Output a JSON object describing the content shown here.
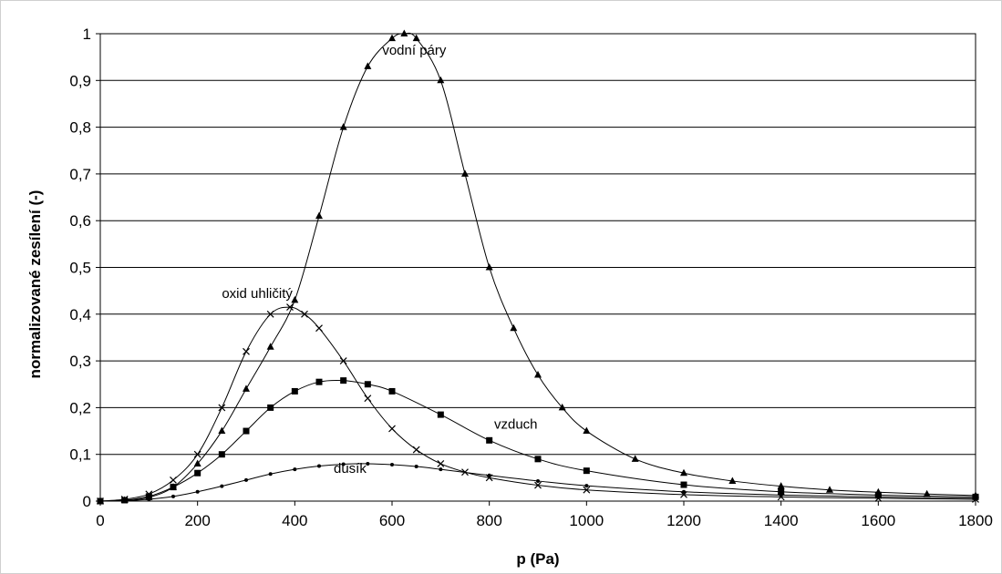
{
  "chart_data": {
    "type": "line",
    "title": "",
    "xlabel": "p (Pa)",
    "ylabel": "normalizované zesílení (-)",
    "xlim": [
      0,
      1800
    ],
    "ylim": [
      0,
      1
    ],
    "x_ticks": [
      "0",
      "200",
      "400",
      "600",
      "800",
      "1000",
      "1200",
      "1400",
      "1600",
      "1800"
    ],
    "y_ticks": [
      "0",
      "0,1",
      "0,2",
      "0,3",
      "0,4",
      "0,5",
      "0,6",
      "0,7",
      "0,8",
      "0,9",
      "1"
    ],
    "grid": "horizontal",
    "legend": "none",
    "series": [
      {
        "name": "vodní páry",
        "marker": "triangle",
        "color": "#000000",
        "x": [
          0,
          50,
          100,
          150,
          200,
          250,
          300,
          350,
          400,
          450,
          500,
          550,
          600,
          625,
          650,
          700,
          750,
          800,
          850,
          900,
          950,
          1000,
          1100,
          1200,
          1300,
          1400,
          1500,
          1600,
          1700,
          1800
        ],
        "y": [
          0,
          0.002,
          0.008,
          0.03,
          0.08,
          0.15,
          0.24,
          0.33,
          0.43,
          0.61,
          0.8,
          0.93,
          0.99,
          1.0,
          0.99,
          0.9,
          0.7,
          0.5,
          0.37,
          0.27,
          0.2,
          0.15,
          0.09,
          0.06,
          0.043,
          0.032,
          0.024,
          0.019,
          0.015,
          0.012
        ]
      },
      {
        "name": "oxid uhličitý",
        "marker": "x",
        "color": "#000000",
        "x": [
          0,
          50,
          100,
          150,
          200,
          250,
          300,
          350,
          390,
          420,
          450,
          500,
          550,
          600,
          650,
          700,
          750,
          800,
          900,
          1000,
          1200,
          1400,
          1600,
          1800
        ],
        "y": [
          0,
          0.004,
          0.015,
          0.045,
          0.1,
          0.2,
          0.32,
          0.4,
          0.415,
          0.4,
          0.37,
          0.3,
          0.22,
          0.155,
          0.11,
          0.08,
          0.062,
          0.05,
          0.034,
          0.024,
          0.014,
          0.009,
          0.006,
          0.004
        ]
      },
      {
        "name": "vzduch",
        "marker": "square",
        "color": "#000000",
        "x": [
          0,
          50,
          100,
          150,
          200,
          250,
          300,
          350,
          400,
          450,
          500,
          550,
          600,
          700,
          800,
          900,
          1000,
          1200,
          1400,
          1600,
          1800
        ],
        "y": [
          0,
          0.002,
          0.01,
          0.03,
          0.06,
          0.1,
          0.15,
          0.2,
          0.235,
          0.255,
          0.258,
          0.25,
          0.235,
          0.185,
          0.13,
          0.09,
          0.065,
          0.035,
          0.02,
          0.013,
          0.009
        ]
      },
      {
        "name": "dusík",
        "marker": "dot",
        "color": "#000000",
        "x": [
          0,
          50,
          100,
          150,
          200,
          250,
          300,
          350,
          400,
          450,
          500,
          550,
          600,
          650,
          700,
          800,
          900,
          1000,
          1200,
          1400,
          1600,
          1800
        ],
        "y": [
          0,
          0.001,
          0.004,
          0.01,
          0.02,
          0.032,
          0.045,
          0.058,
          0.068,
          0.075,
          0.079,
          0.08,
          0.078,
          0.074,
          0.068,
          0.055,
          0.043,
          0.033,
          0.02,
          0.013,
          0.009,
          0.006
        ]
      }
    ],
    "annotations": [
      {
        "text": "vodní páry",
        "x": 580,
        "y": 0.955
      },
      {
        "text": "oxid uhličitý",
        "x": 250,
        "y": 0.435
      },
      {
        "text": "vzduch",
        "x": 810,
        "y": 0.155
      },
      {
        "text": "dusík",
        "x": 480,
        "y": 0.06
      }
    ]
  }
}
